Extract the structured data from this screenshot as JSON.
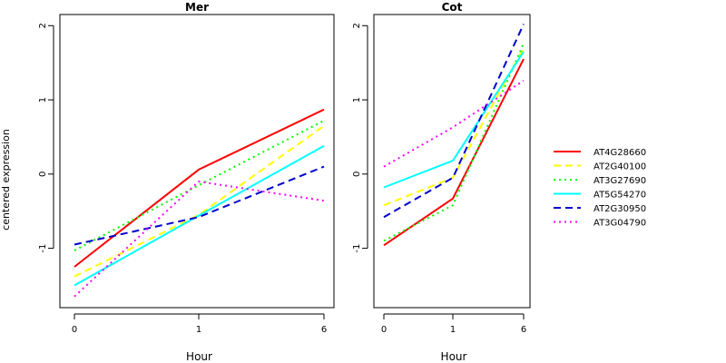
{
  "y_axis_label": "centered expression",
  "chart_data": [
    {
      "type": "line",
      "title": "Mer",
      "xlabel": "Hour",
      "ylabel": "centered expression",
      "categories": [
        "0",
        "1",
        "6"
      ],
      "ylim": [
        -1.8,
        2.15
      ],
      "yticks": [
        -1,
        0,
        1,
        2
      ],
      "grid": false,
      "series": [
        {
          "name": "AT4G28660",
          "values": [
            -1.25,
            0.06,
            0.87
          ]
        },
        {
          "name": "AT2G40100",
          "values": [
            -1.38,
            -0.55,
            0.65
          ]
        },
        {
          "name": "AT3G27690",
          "values": [
            -1.03,
            -0.15,
            0.72
          ]
        },
        {
          "name": "AT5G54270",
          "values": [
            -1.5,
            -0.56,
            0.38
          ]
        },
        {
          "name": "AT2G30950",
          "values": [
            -0.95,
            -0.58,
            0.1
          ]
        },
        {
          "name": "AT3G04790",
          "values": [
            -1.65,
            -0.1,
            -0.36
          ]
        }
      ]
    },
    {
      "type": "line",
      "title": "Cot",
      "xlabel": "Hour",
      "ylabel": "",
      "categories": [
        "0",
        "1",
        "6"
      ],
      "ylim": [
        -1.8,
        2.15
      ],
      "yticks": [
        -1,
        0,
        1,
        2
      ],
      "grid": false,
      "series": [
        {
          "name": "AT4G28660",
          "values": [
            -0.96,
            -0.33,
            1.55
          ]
        },
        {
          "name": "AT2G40100",
          "values": [
            -0.42,
            -0.05,
            1.7
          ]
        },
        {
          "name": "AT3G27690",
          "values": [
            -0.9,
            -0.42,
            1.76
          ]
        },
        {
          "name": "AT5G54270",
          "values": [
            -0.18,
            0.18,
            1.65
          ]
        },
        {
          "name": "AT2G30950",
          "values": [
            -0.58,
            -0.05,
            2.02
          ]
        },
        {
          "name": "AT3G04790",
          "values": [
            0.1,
            0.63,
            1.26
          ]
        }
      ]
    }
  ],
  "legend": {
    "placement": "right",
    "entries": [
      {
        "name": "AT4G28660",
        "color": "#ff0000",
        "dash": "solid"
      },
      {
        "name": "AT2G40100",
        "color": "#ffff00",
        "dash": "dashed"
      },
      {
        "name": "AT3G27690",
        "color": "#00ff00",
        "dash": "dotted"
      },
      {
        "name": "AT5G54270",
        "color": "#00ffff",
        "dash": "solid"
      },
      {
        "name": "AT2G30950",
        "color": "#0000cd",
        "dash": "dashed"
      },
      {
        "name": "AT3G04790",
        "color": "#ff00ff",
        "dash": "dotted"
      }
    ]
  }
}
